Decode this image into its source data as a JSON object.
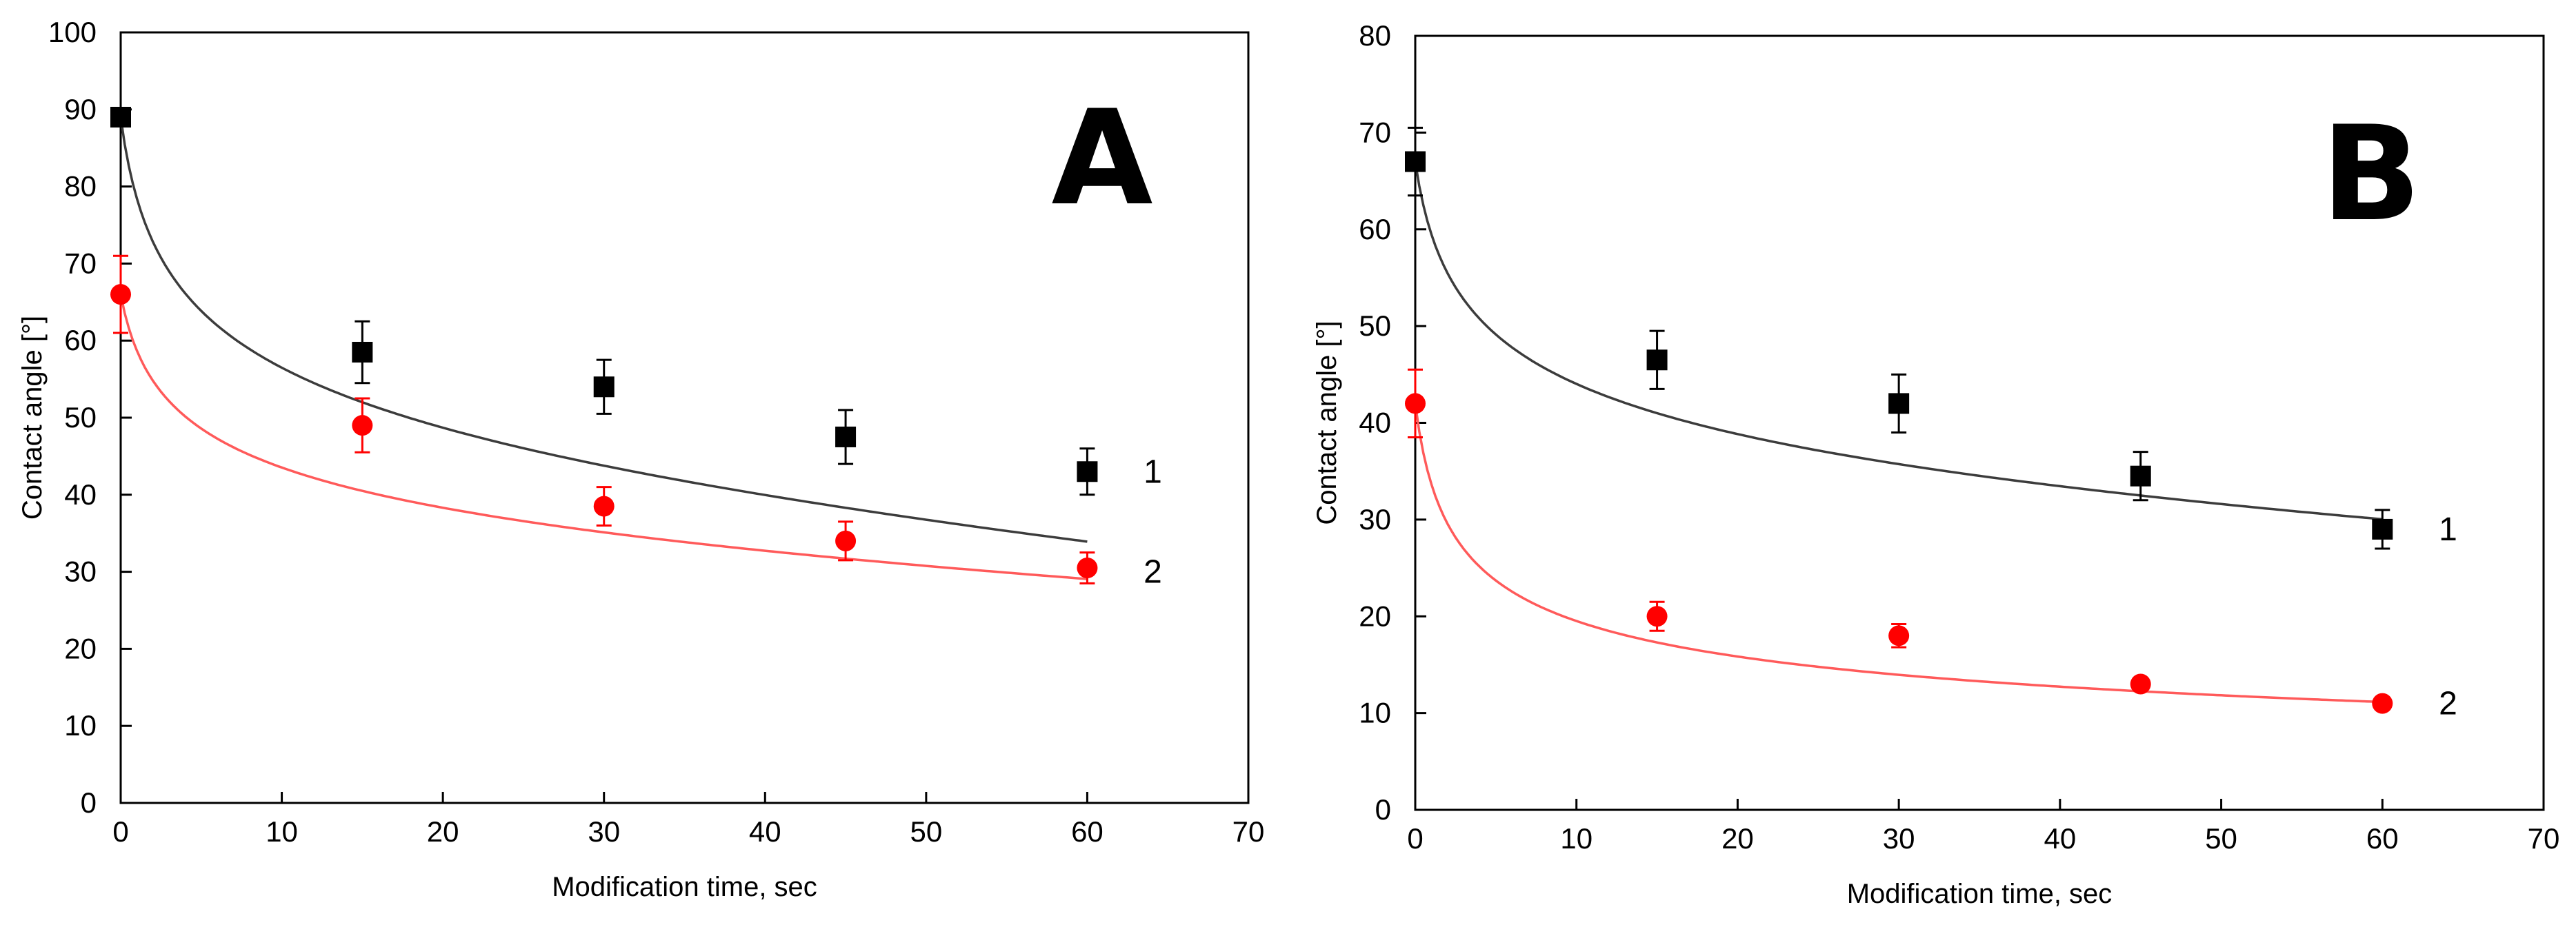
{
  "chart_data": [
    {
      "type": "scatter",
      "panel": "A",
      "xlabel": "Modification time, sec",
      "ylabel": "Contact angle  [°]",
      "xlim": [
        0,
        70
      ],
      "ylim": [
        0,
        100
      ],
      "xticks": [
        0,
        10,
        20,
        30,
        40,
        50,
        60,
        70
      ],
      "yticks": [
        0,
        10,
        20,
        30,
        40,
        50,
        60,
        70,
        80,
        90,
        100
      ],
      "grid": false,
      "series": [
        {
          "name": "1",
          "marker": "square",
          "color": "#000000",
          "line_color": "#3c3c3c",
          "x": [
            0,
            15,
            30,
            45,
            60
          ],
          "y": [
            89,
            58.5,
            54,
            47.5,
            43
          ],
          "err": [
            0,
            4,
            3.5,
            3.5,
            3
          ],
          "fit": [
            89,
            52,
            34
          ],
          "label_pos": [
            63.5,
            43
          ]
        },
        {
          "name": "2",
          "marker": "circle",
          "color": "#ff0000",
          "line_color": "#ff5a5a",
          "x": [
            0,
            15,
            30,
            45,
            60
          ],
          "y": [
            66,
            49,
            38.5,
            34,
            30.5
          ],
          "err": [
            5,
            3.5,
            2.5,
            2.5,
            2
          ],
          "fit": [
            66,
            40.5,
            29
          ],
          "label_pos": [
            63.5,
            30
          ]
        }
      ]
    },
    {
      "type": "scatter",
      "panel": "B",
      "xlabel": "Modification time, sec",
      "ylabel": "Contact angle  [°]",
      "xlim": [
        0,
        70
      ],
      "ylim": [
        0,
        80
      ],
      "xticks": [
        0,
        10,
        20,
        30,
        40,
        50,
        60,
        70
      ],
      "yticks": [
        0,
        10,
        20,
        30,
        40,
        50,
        60,
        70,
        80
      ],
      "grid": false,
      "series": [
        {
          "name": "1",
          "marker": "square",
          "color": "#000000",
          "line_color": "#3c3c3c",
          "x": [
            0,
            15,
            30,
            45,
            60
          ],
          "y": [
            67,
            46.5,
            42,
            34.5,
            29
          ],
          "err": [
            3.5,
            3,
            3,
            2.5,
            2
          ],
          "fit": [
            67,
            41,
            30
          ],
          "label_pos": [
            63.5,
            29
          ]
        },
        {
          "name": "2",
          "marker": "circle",
          "color": "#ff0000",
          "line_color": "#ff5a5a",
          "x": [
            0,
            15,
            30,
            45,
            60
          ],
          "y": [
            42,
            20,
            18,
            13,
            11
          ],
          "err": [
            3.5,
            1.5,
            1.2,
            0.5,
            0.5
          ],
          "fit": [
            42,
            17.3,
            11.2
          ],
          "label_pos": [
            63.5,
            11
          ]
        }
      ]
    }
  ]
}
